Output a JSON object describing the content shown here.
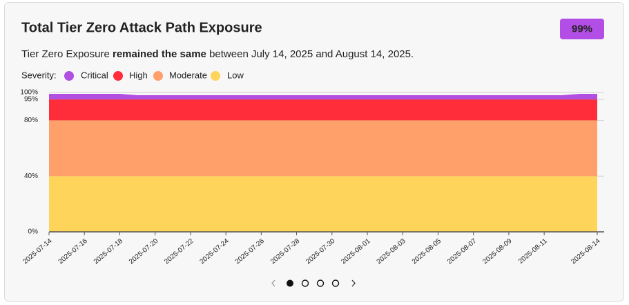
{
  "chart_data": {
    "type": "stacked_area",
    "title": "Total Tier Zero Attack Path Exposure",
    "badge": "99%",
    "subtitle": [
      "Tier Zero Exposure ",
      "remained the same",
      " between July 14, 2025 and August 14, 2025."
    ],
    "legend_title": "Severity:",
    "categories": [
      "2025-07-14",
      null,
      "2025-07-16",
      null,
      "2025-07-18",
      null,
      "2025-07-20",
      null,
      "2025-07-22",
      null,
      "2025-07-24",
      null,
      "2025-07-26",
      null,
      "2025-07-28",
      null,
      "2025-07-30",
      null,
      "2025-08-01",
      null,
      "2025-08-03",
      null,
      "2025-08-05",
      null,
      "2025-08-07",
      null,
      "2025-08-09",
      null,
      "2025-08-11",
      null,
      null,
      "2025-08-14"
    ],
    "series": [
      {
        "name": "Low",
        "color": "#ffd45a",
        "values": [
          40,
          40,
          40,
          40,
          40,
          40,
          40,
          40,
          40,
          40,
          40,
          40,
          40,
          40,
          40,
          40,
          40,
          40,
          40,
          40,
          40,
          40,
          40,
          40,
          40,
          40,
          40,
          40,
          40,
          40,
          40,
          40
        ]
      },
      {
        "name": "Moderate",
        "color": "#ffa06a",
        "values": [
          40,
          40,
          40,
          40,
          40,
          40,
          40,
          40,
          40,
          40,
          40,
          40,
          40,
          40,
          40,
          40,
          40,
          40,
          40,
          40,
          40,
          40,
          40,
          40,
          40,
          40,
          40,
          40,
          40,
          40,
          40,
          40
        ]
      },
      {
        "name": "High",
        "color": "#ff2d3a",
        "values": [
          15,
          15,
          15,
          15,
          15,
          15,
          15,
          15,
          15,
          15,
          15,
          15,
          15,
          15,
          15,
          15,
          15,
          15,
          15,
          15,
          15,
          15,
          15,
          15,
          15,
          15,
          15,
          15,
          15,
          15,
          15,
          15
        ]
      },
      {
        "name": "Critical",
        "color": "#b04fe0",
        "values": [
          4,
          4,
          4,
          4,
          4,
          3,
          3,
          3,
          3,
          3,
          3,
          3,
          3,
          3,
          3,
          3,
          3,
          3,
          3,
          3,
          3,
          3,
          3,
          3,
          3,
          3,
          3,
          3,
          3,
          3,
          4,
          4
        ]
      }
    ],
    "legend_order": [
      3,
      2,
      1,
      0
    ],
    "ylim": [
      0,
      100
    ],
    "yticks": [
      {
        "value": 0,
        "label": "0%"
      },
      {
        "value": 40,
        "label": "40%"
      },
      {
        "value": 80,
        "label": "80%"
      },
      {
        "value": 95,
        "label": "95%"
      },
      {
        "value": 100,
        "label": "100%"
      }
    ],
    "grid": true
  }
}
